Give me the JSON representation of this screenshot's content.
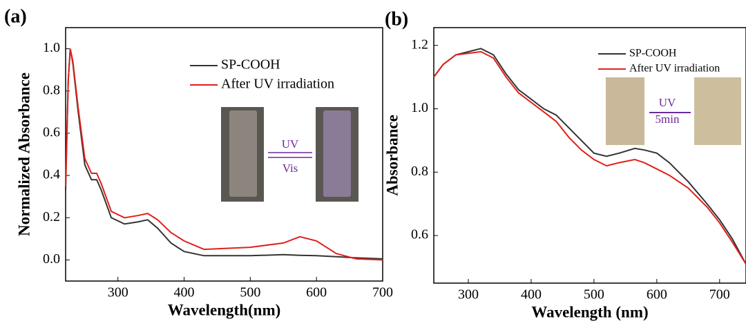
{
  "chart_data": [
    {
      "type": "line",
      "panel_label": "(a)",
      "xlabel": "Wavelength(nm)",
      "ylabel": "Normalized Absorbance",
      "xlim": [
        221,
        700
      ],
      "ylim": [
        -0.1,
        1.1
      ],
      "xticks": [
        300,
        400,
        500,
        600,
        700
      ],
      "yticks": [
        0.0,
        0.2,
        0.4,
        0.6,
        0.8,
        1.0
      ],
      "legend": "upper right",
      "annotations": [
        "UV",
        "Vis"
      ],
      "x": [
        221,
        225,
        228,
        232,
        240,
        250,
        260,
        268,
        275,
        290,
        310,
        330,
        345,
        360,
        380,
        400,
        430,
        500,
        550,
        575,
        600,
        630,
        660,
        700
      ],
      "series": [
        {
          "name": "SP-COOH",
          "color": "#333333",
          "values": [
            0.33,
            0.85,
            1.0,
            0.93,
            0.7,
            0.45,
            0.38,
            0.38,
            0.33,
            0.2,
            0.17,
            0.18,
            0.19,
            0.15,
            0.08,
            0.04,
            0.02,
            0.02,
            0.025,
            0.022,
            0.02,
            0.015,
            0.01,
            0.005
          ]
        },
        {
          "name": "After UV irradiation",
          "color": "#e0201b",
          "values": [
            0.35,
            0.85,
            1.0,
            0.94,
            0.72,
            0.48,
            0.41,
            0.41,
            0.36,
            0.23,
            0.2,
            0.21,
            0.22,
            0.19,
            0.13,
            0.09,
            0.05,
            0.06,
            0.08,
            0.11,
            0.09,
            0.03,
            0.005,
            0.0
          ]
        }
      ]
    },
    {
      "type": "line",
      "panel_label": "(b)",
      "xlabel": "Wavelength (nm)",
      "ylabel": "Absorbance",
      "xlim": [
        245,
        742
      ],
      "ylim": [
        0.45,
        1.256
      ],
      "xticks": [
        300,
        400,
        500,
        600,
        700
      ],
      "yticks": [
        0.6,
        0.8,
        1.0,
        1.2
      ],
      "legend": "upper right",
      "annotations": [
        "UV",
        "5min"
      ],
      "x": [
        245,
        260,
        280,
        300,
        320,
        340,
        360,
        380,
        400,
        420,
        440,
        460,
        480,
        500,
        520,
        540,
        565,
        580,
        600,
        620,
        650,
        680,
        700,
        720,
        742
      ],
      "series": [
        {
          "name": "SP-COOH",
          "color": "#333333",
          "values": [
            1.1,
            1.14,
            1.17,
            1.18,
            1.19,
            1.17,
            1.11,
            1.06,
            1.03,
            1.0,
            0.98,
            0.94,
            0.9,
            0.86,
            0.85,
            0.86,
            0.875,
            0.87,
            0.86,
            0.83,
            0.77,
            0.7,
            0.65,
            0.59,
            0.51
          ]
        },
        {
          "name": "After UV irradiation",
          "color": "#e0201b",
          "values": [
            1.1,
            1.14,
            1.17,
            1.175,
            1.18,
            1.16,
            1.1,
            1.05,
            1.02,
            0.99,
            0.96,
            0.91,
            0.87,
            0.84,
            0.82,
            0.83,
            0.84,
            0.83,
            0.81,
            0.79,
            0.75,
            0.69,
            0.64,
            0.58,
            0.51
          ]
        }
      ]
    }
  ]
}
